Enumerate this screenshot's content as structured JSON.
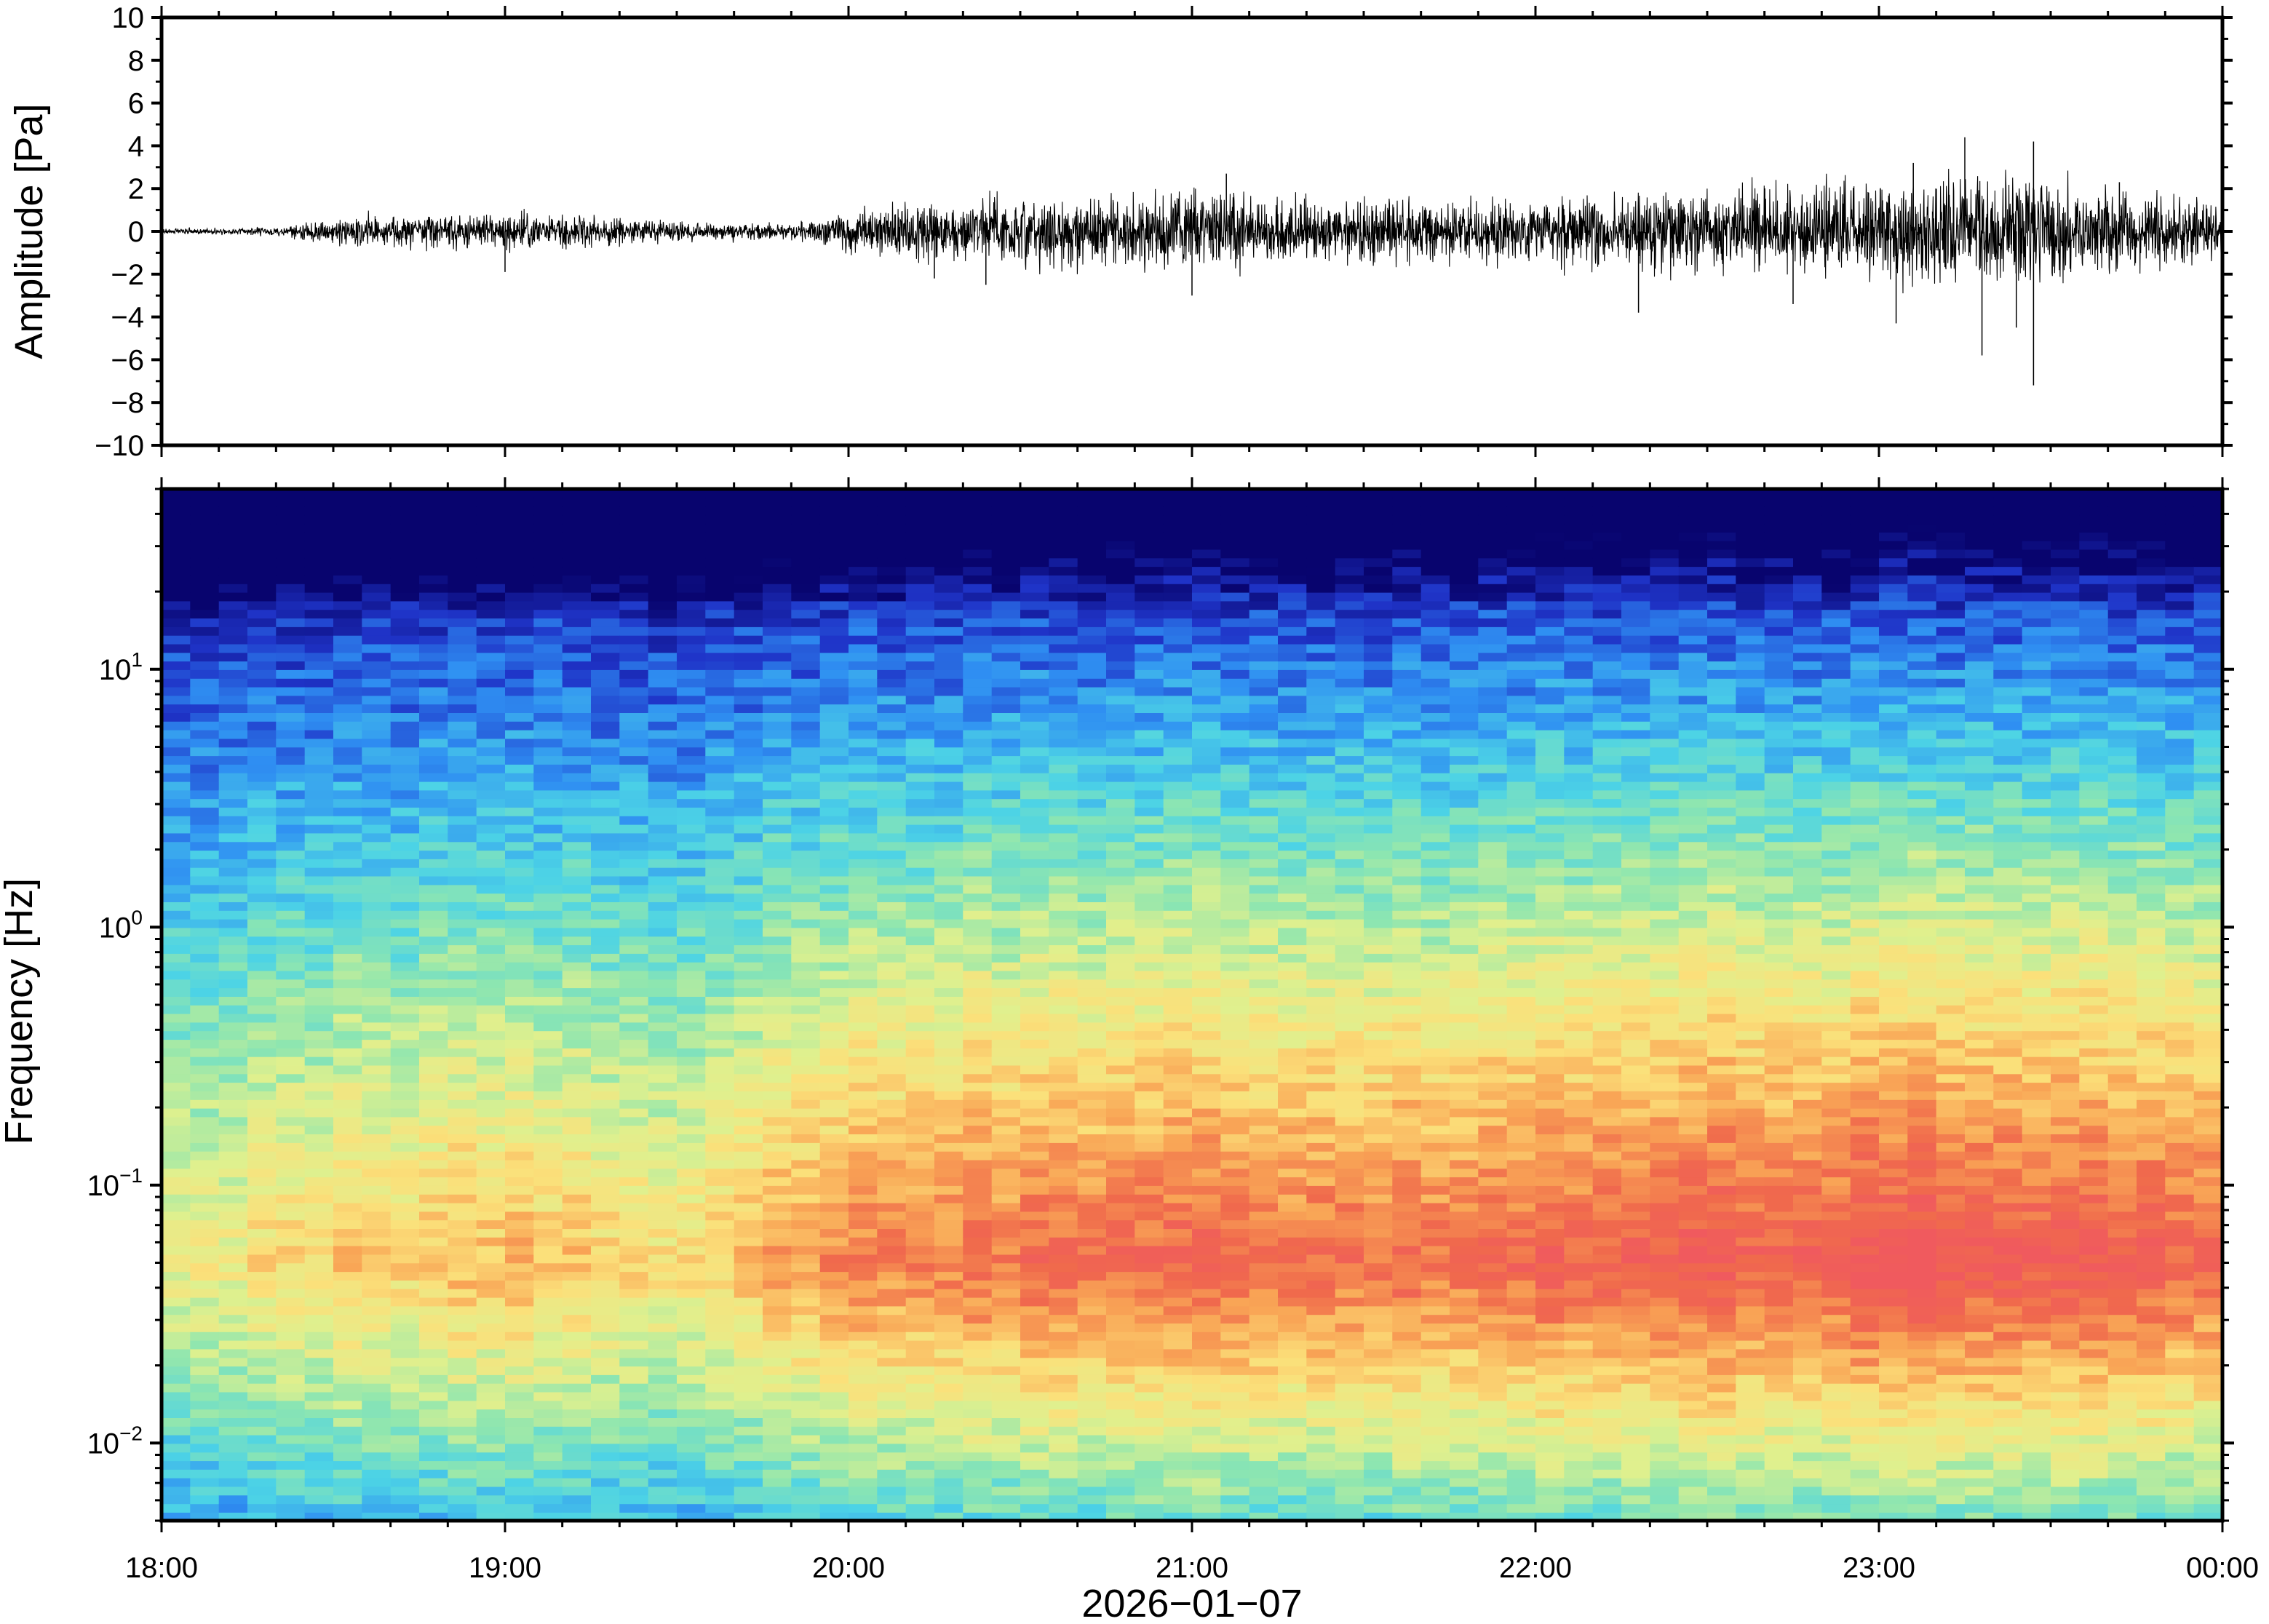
{
  "chart_data": [
    {
      "type": "line",
      "panel": "waveform",
      "ylabel": "Amplitude [Pa]",
      "ylim": [
        -10,
        10
      ],
      "yticks": [
        10,
        8,
        6,
        4,
        2,
        0,
        -2,
        -4,
        -6,
        -8,
        -10
      ],
      "ytick_labels": [
        "10",
        "8",
        "6",
        "4",
        "2",
        "0",
        "−2",
        "−4",
        "−6",
        "−8",
        "−10"
      ],
      "xlim": [
        "2026-01-07 18:00",
        "2026-01-08 00:00"
      ],
      "series_color": "#000000",
      "envelope": {
        "times_h": [
          18.0,
          18.2,
          18.35,
          18.5,
          18.7,
          18.9,
          19.1,
          19.3,
          19.5,
          19.7,
          19.9,
          20.0,
          20.25,
          20.4,
          20.6,
          20.8,
          21.0,
          21.2,
          21.4,
          21.6,
          21.8,
          22.0,
          22.2,
          22.4,
          22.6,
          22.8,
          23.0,
          23.2,
          23.4,
          23.6,
          23.8,
          24.0
        ],
        "amplitude_pa": [
          0.1,
          0.1,
          0.15,
          0.4,
          0.6,
          0.5,
          0.55,
          0.5,
          0.3,
          0.25,
          0.3,
          0.7,
          0.9,
          1.0,
          1.0,
          1.2,
          1.3,
          1.0,
          0.9,
          1.0,
          0.9,
          1.0,
          1.1,
          1.2,
          1.3,
          1.4,
          1.5,
          1.6,
          1.7,
          1.4,
          1.1,
          0.9
        ]
      },
      "spikes": [
        {
          "t_h": 19.0,
          "value": -1.9
        },
        {
          "t_h": 20.25,
          "value": -2.2
        },
        {
          "t_h": 20.4,
          "value": -2.5
        },
        {
          "t_h": 21.0,
          "value": -3.0
        },
        {
          "t_h": 21.1,
          "value": 2.7
        },
        {
          "t_h": 22.3,
          "value": -3.8
        },
        {
          "t_h": 22.75,
          "value": -3.4
        },
        {
          "t_h": 23.05,
          "value": -4.3
        },
        {
          "t_h": 23.1,
          "value": 3.2
        },
        {
          "t_h": 23.25,
          "value": 4.4
        },
        {
          "t_h": 23.3,
          "value": -5.8
        },
        {
          "t_h": 23.45,
          "value": 4.2
        },
        {
          "t_h": 23.45,
          "value": -7.2
        },
        {
          "t_h": 23.4,
          "value": -4.5
        },
        {
          "t_h": 23.7,
          "value": 2.3
        }
      ]
    },
    {
      "type": "heatmap",
      "panel": "spectrogram",
      "ylabel": "Frequency [Hz]",
      "y_scale": "log",
      "ylim_hz": [
        0.005,
        50
      ],
      "ytick_values_hz": [
        10,
        1,
        0.1,
        0.01
      ],
      "ytick_labels": [
        {
          "base": "10",
          "exp": "1"
        },
        {
          "base": "10",
          "exp": "0"
        },
        {
          "base": "10",
          "exp": "−1"
        },
        {
          "base": "10",
          "exp": "−2"
        }
      ],
      "xlim": [
        "2026-01-07 18:00",
        "2026-01-08 00:00"
      ],
      "xticks_h": [
        18,
        19,
        20,
        21,
        22,
        23,
        24
      ],
      "xtick_labels": [
        "18:00",
        "19:00",
        "20:00",
        "21:00",
        "22:00",
        "23:00",
        "00:00"
      ],
      "xlabel": "2026−01−07",
      "colormap": [
        "#08046e",
        "#1f34c8",
        "#2f8ff2",
        "#4cd3e6",
        "#8ee6b0",
        "#dff08e",
        "#fbe07a",
        "#f9a656",
        "#f06a4c",
        "#f05a5e"
      ],
      "relative_power_by_hour": {
        "hours": [
          18.0,
          18.5,
          19.0,
          19.5,
          20.0,
          20.5,
          21.0,
          21.5,
          22.0,
          22.5,
          23.0,
          23.5,
          24.0
        ],
        "activity": [
          0.15,
          0.35,
          0.4,
          0.3,
          0.6,
          0.7,
          0.78,
          0.72,
          0.78,
          0.82,
          0.88,
          0.9,
          0.7
        ]
      }
    }
  ]
}
